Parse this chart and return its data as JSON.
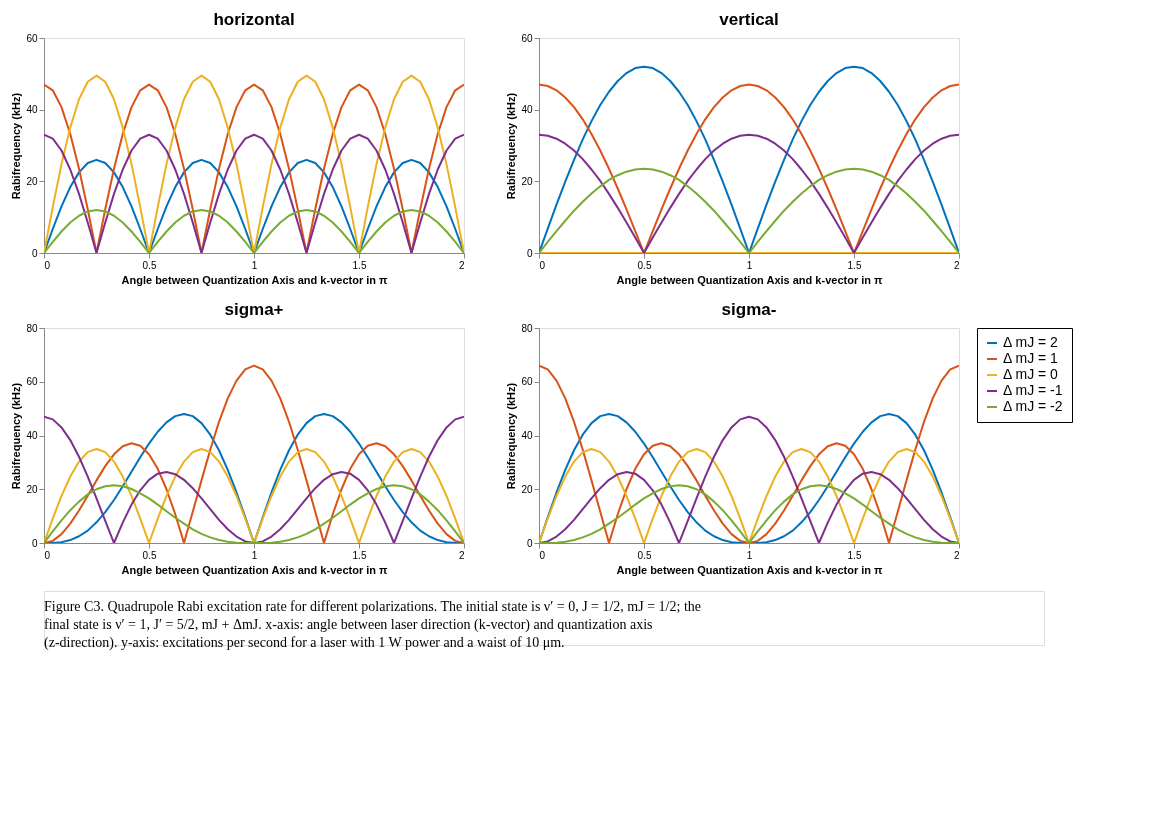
{
  "chart_data": [
    {
      "type": "line",
      "title": "horizontal",
      "xlabel": "Angle between Quantization Axis and k-vector in π",
      "ylabel": "Rabifrequency (kHz)",
      "xlim": [
        0,
        2
      ],
      "xticks": [
        0,
        0.5,
        1,
        1.5,
        2
      ],
      "ylim": [
        0,
        60
      ],
      "yticks": [
        0,
        20,
        40,
        60
      ],
      "grid": false,
      "legend": false,
      "x": [
        0,
        0.0417,
        0.0833,
        0.125,
        0.1667,
        0.2083,
        0.25,
        0.2917,
        0.3333,
        0.375,
        0.4167,
        0.4583,
        0.5,
        0.5417,
        0.5833,
        0.625,
        0.6667,
        0.7083,
        0.75,
        0.7917,
        0.8333,
        0.875,
        0.9167,
        0.9583,
        1,
        1.0417,
        1.0833,
        1.125,
        1.1667,
        1.2083,
        1.25,
        1.2917,
        1.3333,
        1.375,
        1.4167,
        1.4583,
        1.5,
        1.5417,
        1.5833,
        1.625,
        1.6667,
        1.7083,
        1.75,
        1.7917,
        1.8333,
        1.875,
        1.9167,
        1.9583,
        2
      ],
      "series": [
        {
          "color": "#0072bd",
          "values": [
            0,
            6.7,
            13,
            18.4,
            22.5,
            25.1,
            26,
            25.1,
            22.5,
            18.4,
            13,
            6.7,
            0,
            6.7,
            13,
            18.4,
            22.5,
            25.1,
            26,
            25.1,
            22.5,
            18.4,
            13,
            6.7,
            0,
            6.7,
            13,
            18.4,
            22.5,
            25.1,
            26,
            25.1,
            22.5,
            18.4,
            13,
            6.7,
            0,
            6.7,
            13,
            18.4,
            22.5,
            25.1,
            26,
            25.1,
            22.5,
            18.4,
            13,
            6.7,
            0
          ]
        },
        {
          "color": "#d95319",
          "values": [
            47,
            45.4,
            40.7,
            33.2,
            23.5,
            12.2,
            0,
            12.2,
            23.5,
            33.2,
            40.7,
            45.4,
            47,
            45.4,
            40.7,
            33.2,
            23.5,
            12.2,
            0,
            12.2,
            23.5,
            33.2,
            40.7,
            45.4,
            47,
            45.4,
            40.7,
            33.2,
            23.5,
            12.2,
            0,
            12.2,
            23.5,
            33.2,
            40.7,
            45.4,
            47,
            45.4,
            40.7,
            33.2,
            23.5,
            12.2,
            0,
            12.2,
            23.5,
            33.2,
            40.7,
            45.4,
            47
          ]
        },
        {
          "color": "#edb120",
          "values": [
            0,
            12.8,
            24.8,
            35,
            42.9,
            47.8,
            49.5,
            47.8,
            42.9,
            35,
            24.8,
            12.8,
            0,
            12.8,
            24.8,
            35,
            42.9,
            47.8,
            49.5,
            47.8,
            42.9,
            35,
            24.8,
            12.8,
            0,
            12.8,
            24.8,
            35,
            42.9,
            47.8,
            49.5,
            47.8,
            42.9,
            35,
            24.8,
            12.8,
            0,
            12.8,
            24.8,
            35,
            42.9,
            47.8,
            49.5,
            47.8,
            42.9,
            35,
            24.8,
            12.8,
            0
          ]
        },
        {
          "color": "#7e2f8e",
          "values": [
            33,
            31.9,
            28.6,
            23.3,
            16.5,
            8.5,
            0,
            8.5,
            16.5,
            23.3,
            28.6,
            31.9,
            33,
            31.9,
            28.6,
            23.3,
            16.5,
            8.5,
            0,
            8.5,
            16.5,
            23.3,
            28.6,
            31.9,
            33,
            31.9,
            28.6,
            23.3,
            16.5,
            8.5,
            0,
            8.5,
            16.5,
            23.3,
            28.6,
            31.9,
            33,
            31.9,
            28.6,
            23.3,
            16.5,
            8.5,
            0,
            8.5,
            16.5,
            23.3,
            28.6,
            31.9,
            33
          ]
        },
        {
          "color": "#77ac30",
          "values": [
            0,
            3.1,
            6,
            8.5,
            10.4,
            11.6,
            12,
            11.6,
            10.4,
            8.5,
            6,
            3.1,
            0,
            3.1,
            6,
            8.5,
            10.4,
            11.6,
            12,
            11.6,
            10.4,
            8.5,
            6,
            3.1,
            0,
            3.1,
            6,
            8.5,
            10.4,
            11.6,
            12,
            11.6,
            10.4,
            8.5,
            6,
            3.1,
            0,
            3.1,
            6,
            8.5,
            10.4,
            11.6,
            12,
            11.6,
            10.4,
            8.5,
            6,
            3.1,
            0
          ]
        }
      ]
    },
    {
      "type": "line",
      "title": "vertical",
      "xlabel": "Angle between Quantization Axis and k-vector in π",
      "ylabel": "Rabifrequency (kHz)",
      "xlim": [
        0,
        2
      ],
      "xticks": [
        0,
        0.5,
        1,
        1.5,
        2
      ],
      "ylim": [
        0,
        60
      ],
      "yticks": [
        0,
        20,
        40,
        60
      ],
      "grid": false,
      "legend": false,
      "x": [
        0,
        0.0417,
        0.0833,
        0.125,
        0.1667,
        0.2083,
        0.25,
        0.2917,
        0.3333,
        0.375,
        0.4167,
        0.4583,
        0.5,
        0.5417,
        0.5833,
        0.625,
        0.6667,
        0.7083,
        0.75,
        0.7917,
        0.8333,
        0.875,
        0.9167,
        0.9583,
        1,
        1.0417,
        1.0833,
        1.125,
        1.1667,
        1.2083,
        1.25,
        1.2917,
        1.3333,
        1.375,
        1.4167,
        1.4583,
        1.5,
        1.5417,
        1.5833,
        1.625,
        1.6667,
        1.7083,
        1.75,
        1.7917,
        1.8333,
        1.875,
        1.9167,
        1.9583,
        2
      ],
      "series": [
        {
          "color": "#0072bd",
          "values": [
            0,
            6.8,
            13.5,
            19.9,
            26,
            31.7,
            36.8,
            41.3,
            45,
            48,
            50.2,
            51.6,
            52,
            51.6,
            50.2,
            48,
            45,
            41.3,
            36.8,
            31.7,
            26,
            19.9,
            13.5,
            6.8,
            0,
            6.8,
            13.5,
            19.9,
            26,
            31.7,
            36.8,
            41.3,
            45,
            48,
            50.2,
            51.6,
            52,
            51.6,
            50.2,
            48,
            45,
            41.3,
            36.8,
            31.7,
            26,
            19.9,
            13.5,
            6.8,
            0
          ]
        },
        {
          "color": "#d95319",
          "values": [
            47,
            46.6,
            45.4,
            43.4,
            40.7,
            37.3,
            33.2,
            28.6,
            23.5,
            18,
            12.2,
            6.1,
            0,
            6.1,
            12.2,
            18,
            23.5,
            28.6,
            33.2,
            37.3,
            40.7,
            43.4,
            45.4,
            46.6,
            47,
            46.6,
            45.4,
            43.4,
            40.7,
            37.3,
            33.2,
            28.6,
            23.5,
            18,
            12.2,
            6.1,
            0,
            6.1,
            12.2,
            18,
            23.5,
            28.6,
            33.2,
            37.3,
            40.7,
            43.4,
            45.4,
            46.6,
            47
          ]
        },
        {
          "color": "#edb120",
          "values": [
            0,
            0,
            0,
            0,
            0,
            0,
            0,
            0,
            0,
            0,
            0,
            0,
            0,
            0,
            0,
            0,
            0,
            0,
            0,
            0,
            0,
            0,
            0,
            0,
            0,
            0,
            0,
            0,
            0,
            0,
            0,
            0,
            0,
            0,
            0,
            0,
            0,
            0,
            0,
            0,
            0,
            0,
            0,
            0,
            0,
            0,
            0,
            0,
            0
          ]
        },
        {
          "color": "#7e2f8e",
          "values": [
            33,
            32.7,
            31.9,
            30.5,
            28.6,
            26.2,
            23.3,
            20.1,
            16.5,
            12.6,
            8.5,
            4.3,
            0,
            4.3,
            8.5,
            12.6,
            16.5,
            20.1,
            23.3,
            26.2,
            28.6,
            30.5,
            31.9,
            32.7,
            33,
            32.7,
            31.9,
            30.5,
            28.6,
            26.2,
            23.3,
            20.1,
            16.5,
            12.6,
            8.5,
            4.3,
            0,
            4.3,
            8.5,
            12.6,
            16.5,
            20.1,
            23.3,
            26.2,
            28.6,
            30.5,
            31.9,
            32.7,
            33
          ]
        },
        {
          "color": "#77ac30",
          "values": [
            0,
            3.1,
            6.1,
            9,
            11.8,
            14.3,
            16.6,
            18.6,
            20.4,
            21.7,
            22.7,
            23.3,
            23.5,
            23.3,
            22.7,
            21.7,
            20.4,
            18.6,
            16.6,
            14.3,
            11.8,
            9,
            6.1,
            3.1,
            0,
            3.1,
            6.1,
            9,
            11.8,
            14.3,
            16.6,
            18.6,
            20.4,
            21.7,
            22.7,
            23.3,
            23.5,
            23.3,
            22.7,
            21.7,
            20.4,
            18.6,
            16.6,
            14.3,
            11.8,
            9,
            6.1,
            3.1,
            0
          ]
        }
      ]
    },
    {
      "type": "line",
      "title": "sigma+",
      "xlabel": "Angle between Quantization Axis and k-vector in π",
      "ylabel": "Rabifrequency (kHz)",
      "xlim": [
        0,
        2
      ],
      "xticks": [
        0,
        0.5,
        1,
        1.5,
        2
      ],
      "ylim": [
        0,
        80
      ],
      "yticks": [
        0,
        20,
        40,
        60,
        80
      ],
      "grid": false,
      "legend": false,
      "x": [
        0,
        0.0417,
        0.0833,
        0.125,
        0.1667,
        0.2083,
        0.25,
        0.2917,
        0.3333,
        0.375,
        0.4167,
        0.4583,
        0.5,
        0.5417,
        0.5833,
        0.625,
        0.6667,
        0.7083,
        0.75,
        0.7917,
        0.8333,
        0.875,
        0.9167,
        0.9583,
        1,
        1.0417,
        1.0833,
        1.125,
        1.1667,
        1.2083,
        1.25,
        1.2917,
        1.3333,
        1.375,
        1.4167,
        1.4583,
        1.5,
        1.5417,
        1.5833,
        1.625,
        1.6667,
        1.7083,
        1.75,
        1.7917,
        1.8333,
        1.875,
        1.9167,
        1.9583,
        2
      ],
      "series": [
        {
          "color": "#0072bd",
          "values": [
            0,
            0,
            0.3,
            1.1,
            2.5,
            4.6,
            7.7,
            11.5,
            16,
            21.1,
            26.5,
            31.9,
            37,
            41.4,
            44.9,
            47.2,
            48,
            47.2,
            44.6,
            40.3,
            34.5,
            27.2,
            18.8,
            9.6,
            0,
            9.6,
            18.8,
            27.2,
            34.5,
            40.3,
            44.6,
            47.2,
            48,
            47.2,
            44.9,
            41.4,
            37,
            31.9,
            26.5,
            21.1,
            16,
            11.5,
            7.7,
            4.6,
            2.5,
            1.1,
            0.3,
            0,
            0
          ]
        },
        {
          "color": "#d95319",
          "values": [
            0,
            0.8,
            3.3,
            7.2,
            12.1,
            17.6,
            23.3,
            28.6,
            33,
            36,
            37.1,
            36.2,
            33,
            27.6,
            20,
            10.7,
            0,
            11.6,
            23.3,
            34.7,
            45.1,
            53.8,
            60.4,
            64.6,
            66,
            64.6,
            60.4,
            53.8,
            45.1,
            34.7,
            23.3,
            11.6,
            0,
            10.7,
            20,
            27.6,
            33,
            36.2,
            37.1,
            36,
            33,
            28.6,
            23.3,
            17.6,
            12.1,
            7.2,
            3.3,
            0.8,
            0
          ]
        },
        {
          "color": "#edb120",
          "values": [
            0,
            9.1,
            17.5,
            24.7,
            30.3,
            33.8,
            35,
            33.8,
            30.3,
            24.7,
            17.5,
            9.1,
            0,
            9.1,
            17.5,
            24.7,
            30.3,
            33.8,
            35,
            33.8,
            30.3,
            24.7,
            17.5,
            9.1,
            0,
            9.1,
            17.5,
            24.7,
            30.3,
            33.8,
            35,
            33.8,
            30.3,
            24.7,
            17.5,
            9.1,
            0,
            9.1,
            17.5,
            24.7,
            30.3,
            33.8,
            35,
            33.8,
            30.3,
            24.7,
            17.5,
            9.1,
            0
          ]
        },
        {
          "color": "#7e2f8e",
          "values": [
            47,
            46,
            43,
            38.3,
            32.1,
            24.7,
            16.6,
            8.2,
            0,
            7.6,
            14.3,
            19.6,
            23.5,
            25.8,
            26.4,
            25.6,
            23.5,
            20.4,
            16.6,
            12.6,
            8.6,
            5.1,
            2.4,
            0.6,
            0,
            0.6,
            2.4,
            5.1,
            8.6,
            12.6,
            16.6,
            20.4,
            23.5,
            25.6,
            26.4,
            25.8,
            23.5,
            19.6,
            14.3,
            7.6,
            0,
            8.2,
            16.6,
            24.7,
            32.1,
            38.3,
            43,
            46,
            47
          ]
        },
        {
          "color": "#77ac30",
          "values": [
            0,
            4.3,
            8.4,
            12.2,
            15.4,
            18.1,
            20,
            21.1,
            21.5,
            21.1,
            20.1,
            18.5,
            16.6,
            14.3,
            11.8,
            9.4,
            7.2,
            5.1,
            3.4,
            2.1,
            1.1,
            0.5,
            0.1,
            0,
            0,
            0,
            0.1,
            0.5,
            1.1,
            2.1,
            3.4,
            5.1,
            7.2,
            9.4,
            11.8,
            14.3,
            16.6,
            18.5,
            20.1,
            21.1,
            21.5,
            21.1,
            20,
            18.1,
            15.4,
            12.2,
            8.4,
            4.3,
            0
          ]
        }
      ]
    },
    {
      "type": "line",
      "title": "sigma-",
      "xlabel": "Angle between Quantization Axis and k-vector in π",
      "ylabel": "Rabifrequency (kHz)",
      "xlim": [
        0,
        2
      ],
      "xticks": [
        0,
        0.5,
        1,
        1.5,
        2
      ],
      "ylim": [
        0,
        80
      ],
      "yticks": [
        0,
        20,
        40,
        60,
        80
      ],
      "grid": false,
      "legend": "right",
      "x": [
        0,
        0.0417,
        0.0833,
        0.125,
        0.1667,
        0.2083,
        0.25,
        0.2917,
        0.3333,
        0.375,
        0.4167,
        0.4583,
        0.5,
        0.5417,
        0.5833,
        0.625,
        0.6667,
        0.7083,
        0.75,
        0.7917,
        0.8333,
        0.875,
        0.9167,
        0.9583,
        1,
        1.0417,
        1.0833,
        1.125,
        1.1667,
        1.2083,
        1.25,
        1.2917,
        1.3333,
        1.375,
        1.4167,
        1.4583,
        1.5,
        1.5417,
        1.5833,
        1.625,
        1.6667,
        1.7083,
        1.75,
        1.7917,
        1.8333,
        1.875,
        1.9167,
        1.9583,
        2
      ],
      "series": [
        {
          "name": "Δ mJ = 2",
          "color": "#0072bd",
          "values": [
            0,
            9.6,
            18.8,
            27.2,
            34.5,
            40.3,
            44.6,
            47.2,
            48,
            47.2,
            44.9,
            41.4,
            37,
            31.9,
            26.5,
            21.1,
            16,
            11.5,
            7.7,
            4.6,
            2.5,
            1.1,
            0.3,
            0,
            0,
            0,
            0.3,
            1.1,
            2.5,
            4.6,
            7.7,
            11.5,
            16,
            21.1,
            26.5,
            31.9,
            37,
            41.4,
            44.9,
            47.2,
            48,
            47.2,
            44.6,
            40.3,
            34.5,
            27.2,
            18.8,
            9.6,
            0
          ]
        },
        {
          "name": "Δ mJ = 1",
          "color": "#d95319",
          "values": [
            66,
            64.6,
            60.4,
            53.8,
            45.1,
            34.7,
            23.3,
            11.6,
            0,
            10.7,
            20,
            27.6,
            33,
            36.2,
            37.1,
            36,
            33,
            28.6,
            23.3,
            17.6,
            12.1,
            7.2,
            3.3,
            0.8,
            0,
            0.8,
            3.3,
            7.2,
            12.1,
            17.6,
            23.3,
            28.6,
            33,
            36,
            37.1,
            36.2,
            33,
            27.6,
            20,
            10.7,
            0,
            11.6,
            23.3,
            34.7,
            45.1,
            53.8,
            60.4,
            64.6,
            66
          ]
        },
        {
          "name": "Δ mJ = 0",
          "color": "#edb120",
          "values": [
            0,
            9.1,
            17.5,
            24.7,
            30.3,
            33.8,
            35,
            33.8,
            30.3,
            24.7,
            17.5,
            9.1,
            0,
            9.1,
            17.5,
            24.7,
            30.3,
            33.8,
            35,
            33.8,
            30.3,
            24.7,
            17.5,
            9.1,
            0,
            9.1,
            17.5,
            24.7,
            30.3,
            33.8,
            35,
            33.8,
            30.3,
            24.7,
            17.5,
            9.1,
            0,
            9.1,
            17.5,
            24.7,
            30.3,
            33.8,
            35,
            33.8,
            30.3,
            24.7,
            17.5,
            9.1,
            0
          ]
        },
        {
          "name": "Δ mJ = -1",
          "color": "#7e2f8e",
          "values": [
            0,
            0.6,
            2.4,
            5.1,
            8.6,
            12.6,
            16.6,
            20.4,
            23.5,
            25.6,
            26.4,
            25.8,
            23.5,
            19.6,
            14.3,
            7.6,
            0,
            8.2,
            16.6,
            24.7,
            32.1,
            38.3,
            43,
            46,
            47,
            46,
            43,
            38.3,
            32.1,
            24.7,
            16.6,
            8.2,
            0,
            7.6,
            14.3,
            19.6,
            23.5,
            25.8,
            26.4,
            25.6,
            23.5,
            20.4,
            16.6,
            12.6,
            8.6,
            5.1,
            2.4,
            0.6,
            0
          ]
        },
        {
          "name": "Δ mJ = -2",
          "color": "#77ac30",
          "values": [
            0,
            0,
            0.1,
            0.5,
            1.1,
            2.1,
            3.4,
            5.1,
            7.2,
            9.4,
            11.8,
            14.3,
            16.6,
            18.5,
            20.1,
            21.1,
            21.5,
            21.1,
            20,
            18.1,
            15.4,
            12.2,
            8.4,
            4.3,
            0,
            4.3,
            8.4,
            12.2,
            15.4,
            18.1,
            20,
            21.1,
            21.5,
            21.1,
            20.1,
            18.5,
            16.6,
            14.3,
            11.8,
            9.4,
            7.2,
            5.1,
            3.4,
            2.1,
            1.1,
            0.5,
            0.1,
            0,
            0
          ]
        }
      ],
      "annotations": [
        "Figure C3. Quadrupole Rabi excitation rate for different polarizations. The initial state is ν′ = 0, J = 1/2, mJ = 1/2; the final state is ν′ = 1, J′ = 5/2, mJ + ΔmJ. x-axis: angle between laser direction (k-vector) and quantization axis (z-direction). y-axis: excitations per second for a laser with 1 W power and a waist of 10 μm."
      ]
    }
  ]
}
